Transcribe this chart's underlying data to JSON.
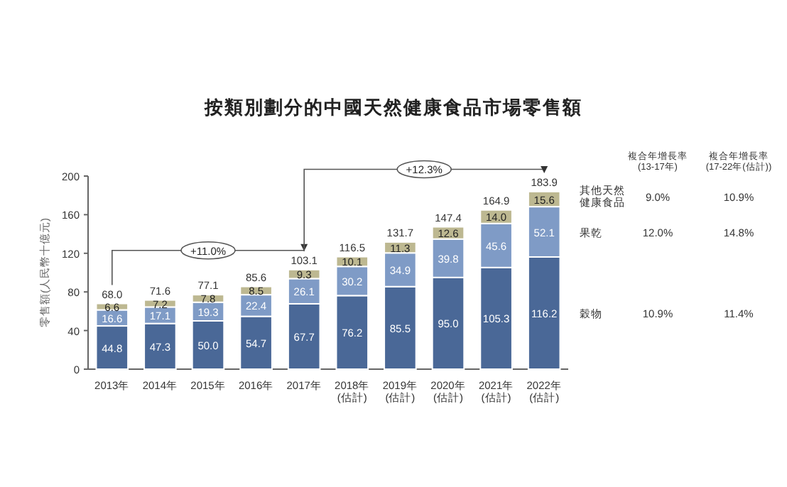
{
  "chart_data": {
    "type": "bar",
    "stacked": true,
    "title": "按類別劃分的中國天然健康食品市場零售額",
    "ylabel": "零售額(人民幣十億元)",
    "categories": [
      "2013年",
      "2014年",
      "2015年",
      "2016年",
      "2017年",
      "2018年\n(估計)",
      "2019年\n(估計)",
      "2020年\n(估計)",
      "2021年\n(估計)",
      "2022年\n(估計)"
    ],
    "series": [
      {
        "name": "穀物",
        "color": "#4a6897",
        "values": [
          44.8,
          47.3,
          50.0,
          54.7,
          67.7,
          76.2,
          85.5,
          95.0,
          105.3,
          116.2
        ],
        "value_labels": [
          "44.8",
          "47.3",
          "50.0",
          "54.7",
          "67.7",
          "76.2",
          "85.5",
          "95.0",
          "105.3",
          "116.2"
        ]
      },
      {
        "name": "果乾",
        "color": "#7f9bc6",
        "values": [
          16.6,
          17.1,
          19.3,
          22.4,
          26.1,
          30.2,
          34.9,
          39.8,
          45.6,
          52.1
        ],
        "value_labels": [
          "16.6",
          "17.1",
          "19.3",
          "22.4",
          "26.1",
          "30.2",
          "34.9",
          "39.8",
          "45.6",
          "52.1"
        ]
      },
      {
        "name": "其他天然健康食品",
        "color": "#bdb891",
        "values": [
          6.6,
          7.2,
          7.8,
          8.5,
          9.3,
          10.1,
          11.3,
          12.6,
          14.0,
          15.6
        ],
        "value_labels": [
          "6.6",
          "7.2",
          "7.8",
          "8.5",
          "9.3",
          "10.1",
          "11.3",
          "12.6",
          "14.0",
          "15.6"
        ]
      }
    ],
    "totals": [
      "68.0",
      "71.6",
      "77.1",
      "85.6",
      "103.1",
      "116.5",
      "131.7",
      "147.4",
      "164.9",
      "183.9"
    ],
    "ylim": [
      0,
      200
    ],
    "yticks": [
      0,
      40,
      80,
      120,
      160,
      200
    ],
    "annotations": [
      "+11.0%",
      "+12.3%",
      "複合年增長率\n(13-17年)",
      "複合年增長率\n(17-22年(估計))",
      "10.9%",
      "11.4%",
      "12.0%",
      "14.8%",
      "9.0%",
      "10.9%"
    ]
  }
}
